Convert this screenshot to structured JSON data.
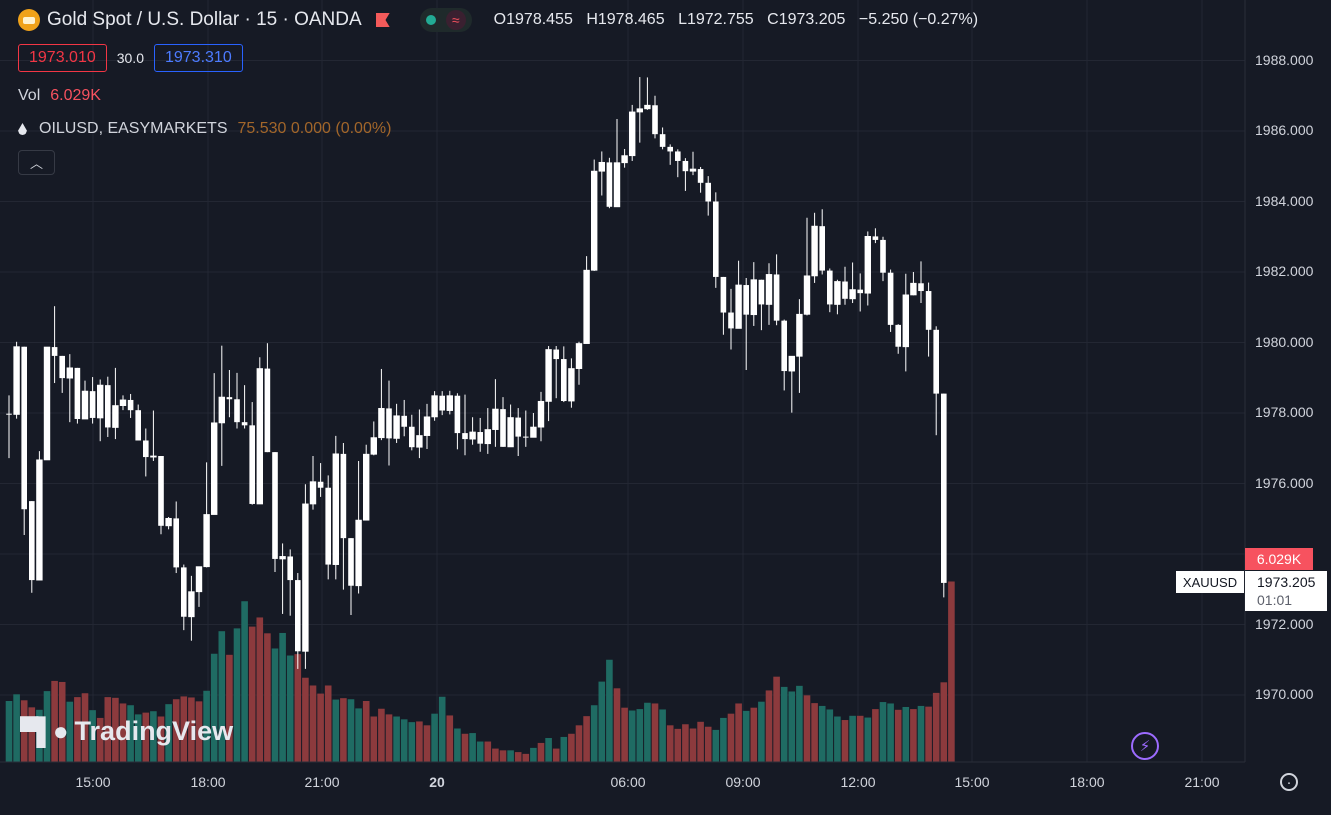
{
  "header": {
    "symbol_title": "Gold Spot / U.S. Dollar · 15 · OANDA",
    "ohlc": {
      "open": "O1978.455",
      "high": "H1978.465",
      "low": "L1972.755",
      "close": "C1973.205",
      "change": "−5.250 (−0.27%)"
    },
    "sell_price": "1973.010",
    "spread": "30.0",
    "buy_price": "1973.310",
    "volume_label": "Vol",
    "volume_value": "6.029K",
    "compare_symbol": "OILUSD, EASYMARKETS",
    "compare_values": "75.530  0.000 (0.00%)",
    "collapse_icon": "chevron-up-icon"
  },
  "watermark": {
    "text": "TradingView"
  },
  "price_scale": {
    "ticks": [
      "1988.000",
      "1986.000",
      "1984.000",
      "1982.000",
      "1980.000",
      "1978.000",
      "1976.000",
      "1972.000",
      "1970.000"
    ]
  },
  "time_scale": {
    "ticks": [
      "15:00",
      "18:00",
      "21:00",
      "20",
      "06:00",
      "09:00",
      "12:00",
      "15:00",
      "18:00",
      "21:00"
    ]
  },
  "last_price": {
    "symbol": "XAUUSD",
    "price": "1973.205",
    "countdown": "01:01",
    "volume_tag": "6.029K"
  },
  "colors": {
    "up": "#ffffff",
    "down": "#ffffff",
    "vol_up": "#1f6b63",
    "vol_down": "#8c3a3d",
    "background": "#161a25",
    "grid": "#232733"
  },
  "chart_data": {
    "type": "candlestick",
    "ylim": [
      1967.5,
      1989.5
    ],
    "candles": [
      [
        1977.98,
        1977.96,
        1978.5,
        1976.72
      ],
      [
        1977.96,
        1979.88,
        1980.02,
        1977.84
      ],
      [
        1979.88,
        1975.27,
        1979.88,
        1974.54
      ],
      [
        1975.5,
        1973.26,
        1975.5,
        1972.9
      ],
      [
        1973.26,
        1976.67,
        1976.92,
        1973.26
      ],
      [
        1976.67,
        1979.87,
        1979.87,
        1976.67
      ],
      [
        1979.87,
        1979.62,
        1981.03,
        1978.85
      ],
      [
        1979.62,
        1978.99,
        1979.62,
        1978.57
      ],
      [
        1978.99,
        1979.28,
        1979.67,
        1977.74
      ],
      [
        1979.28,
        1977.83,
        1979.28,
        1977.7
      ],
      [
        1977.83,
        1978.62,
        1978.92,
        1977.83
      ],
      [
        1978.62,
        1977.86,
        1979.02,
        1977.7
      ],
      [
        1977.86,
        1978.79,
        1978.95,
        1977.2
      ],
      [
        1978.79,
        1977.59,
        1979.03,
        1977.32
      ],
      [
        1977.59,
        1978.21,
        1979.28,
        1977.26
      ],
      [
        1978.21,
        1978.37,
        1978.5,
        1978.08
      ],
      [
        1978.37,
        1978.08,
        1978.54,
        1977.86
      ],
      [
        1978.08,
        1977.22,
        1978.24,
        1977.22
      ],
      [
        1977.22,
        1976.75,
        1977.56,
        1976.2
      ],
      [
        1976.75,
        1976.78,
        1978.07,
        1976.64
      ],
      [
        1976.78,
        1974.8,
        1976.78,
        1974.56
      ],
      [
        1974.8,
        1975.01,
        1975.05,
        1974.7
      ],
      [
        1975.01,
        1973.62,
        1975.49,
        1973.46
      ],
      [
        1973.62,
        1972.22,
        1973.7,
        1971.84
      ],
      [
        1972.22,
        1972.93,
        1973.38,
        1971.54
      ],
      [
        1972.93,
        1973.64,
        1973.64,
        1972.5
      ],
      [
        1973.64,
        1975.12,
        1976.6,
        1973.62
      ],
      [
        1975.12,
        1977.72,
        1979.13,
        1975.12
      ],
      [
        1977.72,
        1978.45,
        1979.91,
        1976.5
      ],
      [
        1978.45,
        1978.39,
        1979.22,
        1977.88
      ],
      [
        1978.39,
        1977.74,
        1979.14,
        1977.56
      ],
      [
        1977.74,
        1977.65,
        1978.79,
        1977.56
      ],
      [
        1977.65,
        1975.42,
        1978.31,
        1975.4
      ],
      [
        1975.42,
        1979.26,
        1979.58,
        1975.42
      ],
      [
        1979.26,
        1976.89,
        1979.98,
        1976.89
      ],
      [
        1976.89,
        1973.86,
        1976.89,
        1973.49
      ],
      [
        1973.86,
        1973.93,
        1974.3,
        1972.3
      ],
      [
        1973.93,
        1973.26,
        1974.13,
        1972.25
      ],
      [
        1973.26,
        1971.24,
        1973.46,
        1970.74
      ],
      [
        1971.24,
        1975.42,
        1975.98,
        1970.74
      ],
      [
        1975.42,
        1976.05,
        1976.78,
        1975.26
      ],
      [
        1976.05,
        1975.88,
        1976.58,
        1975.62
      ],
      [
        1975.88,
        1973.7,
        1976.23,
        1973.28
      ],
      [
        1973.7,
        1976.84,
        1977.35,
        1973.28
      ],
      [
        1976.84,
        1974.45,
        1977.15,
        1972.99
      ],
      [
        1974.45,
        1973.1,
        1974.45,
        1972.27
      ],
      [
        1973.1,
        1974.96,
        1976.64,
        1972.88
      ],
      [
        1974.96,
        1976.83,
        1977.1,
        1974.96
      ],
      [
        1976.83,
        1977.3,
        1977.76,
        1976.8
      ],
      [
        1977.3,
        1978.13,
        1979.25,
        1977.23
      ],
      [
        1978.13,
        1977.28,
        1978.92,
        1976.51
      ],
      [
        1977.28,
        1977.92,
        1978.26,
        1977.15
      ],
      [
        1977.92,
        1977.61,
        1978.37,
        1977.34
      ],
      [
        1977.61,
        1977.03,
        1977.95,
        1976.94
      ],
      [
        1977.03,
        1977.36,
        1978.1,
        1976.72
      ],
      [
        1977.36,
        1977.89,
        1978.26,
        1976.98
      ],
      [
        1977.89,
        1978.49,
        1978.62,
        1977.78
      ],
      [
        1978.49,
        1978.07,
        1978.62,
        1977.94
      ],
      [
        1978.07,
        1978.49,
        1978.63,
        1977.96
      ],
      [
        1978.49,
        1977.43,
        1978.56,
        1976.97
      ],
      [
        1977.43,
        1977.26,
        1978.52,
        1976.8
      ],
      [
        1977.26,
        1977.46,
        1977.88,
        1977.1
      ],
      [
        1977.46,
        1977.13,
        1977.86,
        1976.9
      ],
      [
        1977.13,
        1977.53,
        1978.14,
        1976.84
      ],
      [
        1977.53,
        1978.11,
        1978.96,
        1977.04
      ],
      [
        1978.11,
        1977.04,
        1978.45,
        1977.04
      ],
      [
        1977.04,
        1977.87,
        1978.24,
        1977.3
      ],
      [
        1977.87,
        1977.33,
        1978.14,
        1976.78
      ],
      [
        1977.33,
        1977.31,
        1978.07,
        1977.04
      ],
      [
        1977.31,
        1977.6,
        1978.0,
        1977.35
      ],
      [
        1977.6,
        1978.33,
        1978.6,
        1977.2
      ],
      [
        1978.33,
        1979.8,
        1979.9,
        1977.77
      ],
      [
        1979.8,
        1979.53,
        1979.9,
        1978.42
      ],
      [
        1979.53,
        1978.34,
        1979.89,
        1978.31
      ],
      [
        1978.34,
        1979.26,
        1979.55,
        1978.15
      ],
      [
        1979.26,
        1979.97,
        1980.02,
        1978.8
      ],
      [
        1979.97,
        1982.05,
        1982.45,
        1979.97
      ],
      [
        1982.05,
        1984.86,
        1985.19,
        1982.03
      ],
      [
        1984.86,
        1985.11,
        1985.42,
        1984.17
      ],
      [
        1985.11,
        1983.85,
        1985.24,
        1983.81
      ],
      [
        1983.85,
        1985.1,
        1986.34,
        1983.85
      ],
      [
        1985.1,
        1985.3,
        1985.49,
        1984.96
      ],
      [
        1985.3,
        1986.54,
        1986.74,
        1985.15
      ],
      [
        1986.54,
        1986.63,
        1987.53,
        1985.67
      ],
      [
        1986.63,
        1986.73,
        1987.52,
        1986.6
      ],
      [
        1986.73,
        1985.91,
        1987.0,
        1985.79
      ],
      [
        1985.91,
        1985.55,
        1986.1,
        1985.48
      ],
      [
        1985.55,
        1985.42,
        1985.62,
        1985.04
      ],
      [
        1985.42,
        1985.15,
        1985.48,
        1984.69
      ],
      [
        1985.15,
        1984.86,
        1985.23,
        1984.3
      ],
      [
        1984.86,
        1984.92,
        1985.41,
        1984.75
      ],
      [
        1984.92,
        1984.53,
        1984.98,
        1984.25
      ],
      [
        1984.53,
        1984.0,
        1984.72,
        1983.6
      ],
      [
        1984.0,
        1981.86,
        1984.26,
        1981.55
      ],
      [
        1981.86,
        1980.85,
        1981.86,
        1980.22
      ],
      [
        1980.85,
        1980.4,
        1981.52,
        1979.8
      ],
      [
        1980.4,
        1981.63,
        1982.32,
        1980.4
      ],
      [
        1981.63,
        1980.79,
        1981.83,
        1979.22
      ],
      [
        1980.79,
        1981.78,
        1982.28,
        1980.47
      ],
      [
        1981.78,
        1981.08,
        1981.78,
        1980.35
      ],
      [
        1981.08,
        1981.93,
        1982.25,
        1980.5
      ],
      [
        1981.93,
        1980.62,
        1982.5,
        1980.49
      ],
      [
        1980.62,
        1979.19,
        1980.65,
        1978.64
      ],
      [
        1979.19,
        1979.61,
        1979.61,
        1978.01
      ],
      [
        1979.61,
        1980.8,
        1981.23,
        1978.57
      ],
      [
        1980.8,
        1981.89,
        1983.54,
        1980.77
      ],
      [
        1981.89,
        1983.3,
        1983.68,
        1981.69
      ],
      [
        1983.3,
        1982.04,
        1983.78,
        1981.93
      ],
      [
        1982.04,
        1981.08,
        1982.1,
        1980.86
      ],
      [
        1981.08,
        1981.73,
        1981.78,
        1980.8
      ],
      [
        1981.73,
        1981.24,
        1982.15,
        1981.07
      ],
      [
        1981.24,
        1981.5,
        1982.27,
        1981.12
      ],
      [
        1981.5,
        1981.4,
        1981.96,
        1980.88
      ],
      [
        1981.4,
        1983.01,
        1983.15,
        1981.05
      ],
      [
        1983.01,
        1982.91,
        1983.24,
        1982.82
      ],
      [
        1982.91,
        1981.98,
        1983.0,
        1981.74
      ],
      [
        1981.98,
        1980.5,
        1982.07,
        1980.3
      ],
      [
        1980.5,
        1979.88,
        1980.52,
        1979.68
      ],
      [
        1979.88,
        1981.35,
        1981.95,
        1979.18
      ],
      [
        1981.35,
        1981.68,
        1982.0,
        1981.34
      ],
      [
        1981.68,
        1981.46,
        1982.3,
        1981.12
      ],
      [
        1981.46,
        1980.36,
        1981.7,
        1979.6
      ],
      [
        1980.36,
        1978.55,
        1980.46,
        1977.37
      ],
      [
        1978.55,
        1973.18,
        1978.55,
        1972.77
      ]
    ],
    "volumes": [
      [
        1969.83,
        1
      ],
      [
        1970.02,
        1
      ],
      [
        1969.85,
        0
      ],
      [
        1969.65,
        0
      ],
      [
        1969.58,
        1
      ],
      [
        1970.11,
        1
      ],
      [
        1970.4,
        0
      ],
      [
        1970.37,
        0
      ],
      [
        1969.81,
        1
      ],
      [
        1969.94,
        0
      ],
      [
        1970.05,
        0
      ],
      [
        1969.57,
        1
      ],
      [
        1969.35,
        0
      ],
      [
        1969.94,
        0
      ],
      [
        1969.92,
        0
      ],
      [
        1969.76,
        0
      ],
      [
        1969.71,
        1
      ],
      [
        1969.45,
        1
      ],
      [
        1969.5,
        0
      ],
      [
        1969.54,
        1
      ],
      [
        1969.39,
        0
      ],
      [
        1969.74,
        1
      ],
      [
        1969.88,
        0
      ],
      [
        1969.96,
        0
      ],
      [
        1969.93,
        0
      ],
      [
        1969.82,
        0
      ],
      [
        1970.12,
        1
      ],
      [
        1971.17,
        1
      ],
      [
        1971.81,
        1
      ],
      [
        1971.14,
        0
      ],
      [
        1971.89,
        1
      ],
      [
        1972.66,
        1
      ],
      [
        1971.94,
        0
      ],
      [
        1972.2,
        0
      ],
      [
        1971.75,
        0
      ],
      [
        1971.32,
        1
      ],
      [
        1971.76,
        1
      ],
      [
        1971.12,
        1
      ],
      [
        1971.16,
        0
      ],
      [
        1970.49,
        0
      ],
      [
        1970.27,
        0
      ],
      [
        1970.04,
        0
      ],
      [
        1970.27,
        0
      ],
      [
        1969.87,
        1
      ],
      [
        1969.91,
        0
      ],
      [
        1969.88,
        1
      ],
      [
        1969.62,
        1
      ],
      [
        1969.83,
        0
      ],
      [
        1969.39,
        0
      ],
      [
        1969.61,
        0
      ],
      [
        1969.45,
        0
      ],
      [
        1969.39,
        1
      ],
      [
        1969.31,
        1
      ],
      [
        1969.23,
        1
      ],
      [
        1969.25,
        0
      ],
      [
        1969.14,
        0
      ],
      [
        1969.47,
        1
      ],
      [
        1969.95,
        1
      ],
      [
        1969.42,
        0
      ],
      [
        1969.05,
        1
      ],
      [
        1968.9,
        0
      ],
      [
        1968.92,
        1
      ],
      [
        1968.68,
        1
      ],
      [
        1968.68,
        0
      ],
      [
        1968.48,
        0
      ],
      [
        1968.43,
        0
      ],
      [
        1968.43,
        1
      ],
      [
        1968.38,
        0
      ],
      [
        1968.33,
        0
      ],
      [
        1968.5,
        1
      ],
      [
        1968.64,
        0
      ],
      [
        1968.78,
        1
      ],
      [
        1968.48,
        0
      ],
      [
        1968.81,
        1
      ],
      [
        1968.9,
        0
      ],
      [
        1969.14,
        0
      ],
      [
        1969.4,
        0
      ],
      [
        1969.71,
        1
      ],
      [
        1970.38,
        1
      ],
      [
        1971.0,
        1
      ],
      [
        1970.19,
        0
      ],
      [
        1969.64,
        0
      ],
      [
        1969.56,
        1
      ],
      [
        1969.6,
        1
      ],
      [
        1969.78,
        1
      ],
      [
        1969.76,
        0
      ],
      [
        1969.59,
        1
      ],
      [
        1969.14,
        0
      ],
      [
        1969.04,
        0
      ],
      [
        1969.17,
        0
      ],
      [
        1969.05,
        0
      ],
      [
        1969.24,
        0
      ],
      [
        1969.1,
        0
      ],
      [
        1969.01,
        1
      ],
      [
        1969.35,
        1
      ],
      [
        1969.47,
        0
      ],
      [
        1969.76,
        0
      ],
      [
        1969.55,
        1
      ],
      [
        1969.64,
        0
      ],
      [
        1969.81,
        1
      ],
      [
        1970.13,
        0
      ],
      [
        1970.52,
        0
      ],
      [
        1970.23,
        1
      ],
      [
        1970.1,
        1
      ],
      [
        1970.26,
        1
      ],
      [
        1969.99,
        0
      ],
      [
        1969.77,
        0
      ],
      [
        1969.69,
        1
      ],
      [
        1969.59,
        1
      ],
      [
        1969.39,
        1
      ],
      [
        1969.29,
        0
      ],
      [
        1969.41,
        1
      ],
      [
        1969.41,
        0
      ],
      [
        1969.36,
        1
      ],
      [
        1969.6,
        0
      ],
      [
        1969.8,
        1
      ],
      [
        1969.76,
        1
      ],
      [
        1969.58,
        0
      ],
      [
        1969.66,
        1
      ],
      [
        1969.6,
        0
      ],
      [
        1969.69,
        1
      ],
      [
        1969.67,
        0
      ],
      [
        1970.06,
        0
      ],
      [
        1970.36,
        0
      ],
      [
        1973.22,
        0
      ]
    ]
  }
}
